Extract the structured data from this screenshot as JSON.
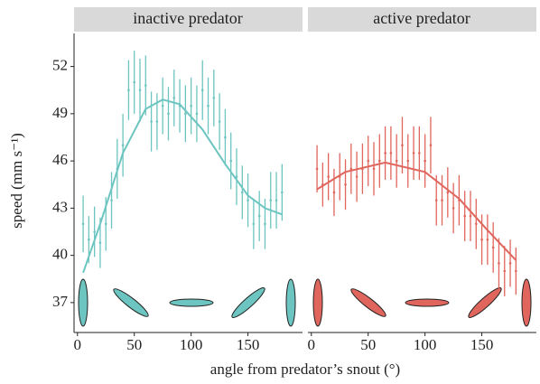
{
  "chart_data": [
    {
      "type": "scatter",
      "title": "inactive predator",
      "y_label": "speed (mm s⁻¹)",
      "x_label": "angle from predator’s snout (°)",
      "xlim": [
        -3,
        198
      ],
      "ylim": [
        35.1,
        54.1
      ],
      "xticks": [
        0,
        50,
        100,
        150
      ],
      "yticks": [
        37,
        40,
        43,
        46,
        49,
        52
      ],
      "color": "#6cc5c0",
      "x": [
        5,
        10,
        15,
        20,
        25,
        30,
        35,
        40,
        45,
        50,
        55,
        60,
        65,
        70,
        75,
        80,
        85,
        90,
        95,
        100,
        105,
        110,
        115,
        120,
        125,
        130,
        135,
        140,
        145,
        150,
        155,
        160,
        165,
        170,
        175,
        180
      ],
      "values": [
        42.0,
        41.0,
        41.5,
        40.8,
        42.0,
        43.5,
        45.5,
        47.0,
        50.5,
        51.0,
        50.5,
        50.8,
        48.5,
        48.5,
        49.5,
        49.0,
        50.0,
        49.5,
        49.0,
        49.5,
        49.0,
        50.5,
        49.5,
        50.0,
        48.5,
        47.5,
        46.0,
        45.0,
        44.0,
        43.5,
        42.0,
        42.5,
        42.0,
        43.5,
        43.5,
        44.0
      ],
      "errors": [
        1.8,
        1.5,
        1.6,
        1.6,
        1.7,
        1.8,
        1.9,
        2.0,
        1.9,
        2.0,
        2.0,
        1.9,
        1.9,
        1.8,
        1.8,
        1.7,
        1.8,
        1.7,
        1.8,
        1.8,
        1.8,
        1.9,
        1.8,
        1.8,
        1.8,
        1.8,
        1.8,
        1.8,
        1.7,
        1.7,
        1.6,
        1.6,
        1.6,
        1.8,
        1.8,
        1.8
      ],
      "fit_x": [
        5,
        20,
        40,
        60,
        75,
        90,
        110,
        130,
        150,
        165,
        180
      ],
      "fit_values": [
        38.9,
        42.0,
        46.5,
        49.3,
        49.9,
        49.6,
        48.0,
        45.8,
        43.8,
        43.0,
        42.6
      ]
    },
    {
      "type": "scatter",
      "title": "active predator",
      "xlim": [
        -3,
        198
      ],
      "ylim": [
        35.1,
        54.1
      ],
      "xticks": [
        0,
        50,
        100,
        150
      ],
      "color": "#e0665d",
      "x": [
        5,
        10,
        15,
        20,
        25,
        30,
        35,
        40,
        45,
        50,
        55,
        60,
        65,
        70,
        75,
        80,
        85,
        90,
        95,
        100,
        105,
        110,
        115,
        120,
        125,
        130,
        135,
        140,
        145,
        150,
        155,
        160,
        165,
        170,
        175,
        180
      ],
      "values": [
        45.5,
        44.5,
        45.0,
        44.0,
        45.0,
        44.5,
        45.5,
        45.0,
        45.5,
        46.0,
        45.5,
        46.0,
        46.5,
        46.5,
        46.0,
        47.0,
        46.0,
        46.5,
        46.5,
        46.0,
        47.0,
        43.5,
        43.5,
        44.0,
        43.0,
        43.5,
        42.5,
        42.5,
        42.0,
        41.0,
        41.0,
        40.5,
        39.5,
        39.0,
        39.5,
        39.0
      ],
      "errors": [
        1.5,
        1.4,
        1.5,
        1.5,
        1.5,
        1.6,
        1.6,
        1.6,
        1.6,
        1.6,
        1.7,
        1.7,
        1.7,
        1.7,
        1.7,
        1.8,
        1.7,
        1.7,
        1.7,
        1.7,
        1.8,
        1.6,
        1.6,
        1.6,
        1.6,
        1.6,
        1.6,
        1.6,
        1.6,
        1.6,
        1.6,
        1.6,
        1.6,
        1.6,
        1.5,
        1.5
      ],
      "fit_x": [
        5,
        30,
        65,
        100,
        130,
        155,
        180
      ],
      "fit_values": [
        44.2,
        45.3,
        45.9,
        45.3,
        43.6,
        41.6,
        39.7
      ]
    }
  ]
}
